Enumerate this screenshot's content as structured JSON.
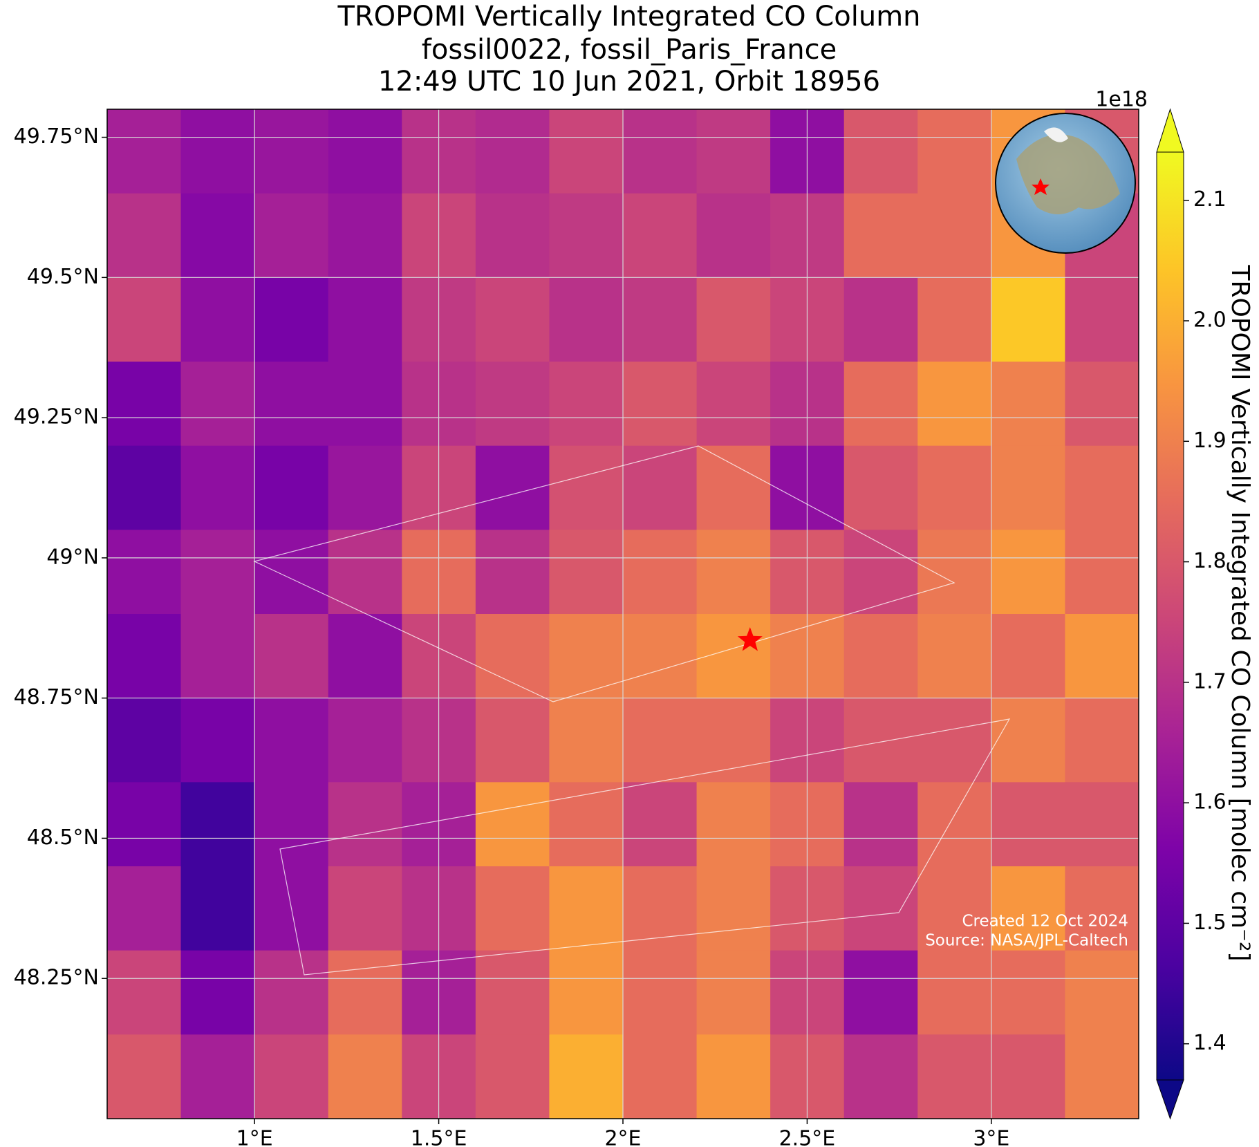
{
  "chart_data": {
    "type": "heatmap",
    "title": [
      "TROPOMI Vertically Integrated CO Column",
      "fossil0022, fossil_Paris_France",
      "12:49 UTC 10 Jun 2021, Orbit 18956"
    ],
    "xlim": [
      0.6,
      3.4
    ],
    "ylim": [
      48.0,
      49.8
    ],
    "xticks": [
      {
        "value": 1,
        "label": "1°E"
      },
      {
        "value": 1.5,
        "label": "1.5°E"
      },
      {
        "value": 2,
        "label": "2°E"
      },
      {
        "value": 2.5,
        "label": "2.5°E"
      },
      {
        "value": 3,
        "label": "3°E"
      }
    ],
    "yticks": [
      {
        "value": 48.25,
        "label": "48.25°N"
      },
      {
        "value": 48.5,
        "label": "48.5°N"
      },
      {
        "value": 48.75,
        "label": "48.75°N"
      },
      {
        "value": 49,
        "label": "49°N"
      },
      {
        "value": 49.25,
        "label": "49.25°N"
      },
      {
        "value": 49.5,
        "label": "49.5°N"
      },
      {
        "value": 49.75,
        "label": "49.75°N"
      }
    ],
    "grid": true,
    "colormap": "plasma",
    "clim": [
      1.37,
      2.14
    ],
    "cticks": [
      1.4,
      1.5,
      1.6,
      1.7,
      1.8,
      1.9,
      {
        "value": 2,
        "label": "2.0"
      },
      2.1
    ],
    "colorbar_offset": "1e18",
    "colorbar_label": "TROPOMI Vertically Integrated CO Column [molec cm⁻²]",
    "lon_edges": [
      0.6,
      0.8,
      1.0,
      1.2,
      1.4,
      1.6,
      1.8,
      2.0,
      2.2,
      2.4,
      2.6,
      2.8,
      3.0,
      3.2,
      3.4
    ],
    "lat_edges": [
      49.8,
      49.65,
      49.5,
      49.35,
      49.2,
      49.05,
      48.9,
      48.75,
      48.6,
      48.45,
      48.3,
      48.15,
      48.0
    ],
    "values": [
      [
        1.65,
        1.6,
        1.62,
        1.6,
        1.7,
        1.68,
        1.75,
        1.7,
        1.72,
        1.6,
        1.8,
        1.85,
        1.95,
        1.8
      ],
      [
        1.7,
        1.58,
        1.65,
        1.62,
        1.75,
        1.7,
        1.72,
        1.75,
        1.7,
        1.72,
        1.85,
        1.85,
        1.95,
        1.75
      ],
      [
        1.75,
        1.6,
        1.55,
        1.6,
        1.72,
        1.75,
        1.7,
        1.72,
        1.8,
        1.75,
        1.7,
        1.85,
        2.05,
        1.75
      ],
      [
        1.55,
        1.65,
        1.6,
        1.6,
        1.7,
        1.72,
        1.75,
        1.8,
        1.75,
        1.7,
        1.85,
        1.95,
        1.9,
        1.8
      ],
      [
        1.5,
        1.6,
        1.55,
        1.62,
        1.75,
        1.6,
        1.78,
        1.75,
        1.85,
        1.6,
        1.8,
        1.85,
        1.9,
        1.85
      ],
      [
        1.6,
        1.65,
        1.6,
        1.7,
        1.85,
        1.7,
        1.8,
        1.85,
        1.9,
        1.8,
        1.75,
        1.88,
        1.95,
        1.85
      ],
      [
        1.55,
        1.65,
        1.7,
        1.6,
        1.75,
        1.85,
        1.9,
        1.9,
        1.95,
        1.9,
        1.85,
        1.9,
        1.85,
        1.95
      ],
      [
        1.5,
        1.55,
        1.6,
        1.65,
        1.7,
        1.8,
        1.9,
        1.85,
        1.85,
        1.75,
        1.8,
        1.8,
        1.9,
        1.85
      ],
      [
        1.55,
        1.45,
        1.6,
        1.7,
        1.65,
        1.95,
        1.85,
        1.75,
        1.9,
        1.85,
        1.7,
        1.85,
        1.8,
        1.8
      ],
      [
        1.65,
        1.45,
        1.6,
        1.75,
        1.7,
        1.85,
        1.95,
        1.85,
        1.9,
        1.8,
        1.75,
        1.85,
        1.95,
        1.85
      ],
      [
        1.75,
        1.55,
        1.7,
        1.85,
        1.65,
        1.8,
        1.95,
        1.85,
        1.9,
        1.75,
        1.6,
        1.85,
        1.85,
        1.9
      ],
      [
        1.8,
        1.65,
        1.75,
        1.9,
        1.75,
        1.8,
        2.0,
        1.85,
        1.95,
        1.8,
        1.7,
        1.8,
        1.8,
        1.9
      ]
    ],
    "marker": {
      "lon": 2.345,
      "lat": 48.853,
      "color": "#ff0000"
    },
    "credits": [
      "Created 12 Oct 2024",
      "Source: NASA/JPL-Caltech"
    ]
  }
}
